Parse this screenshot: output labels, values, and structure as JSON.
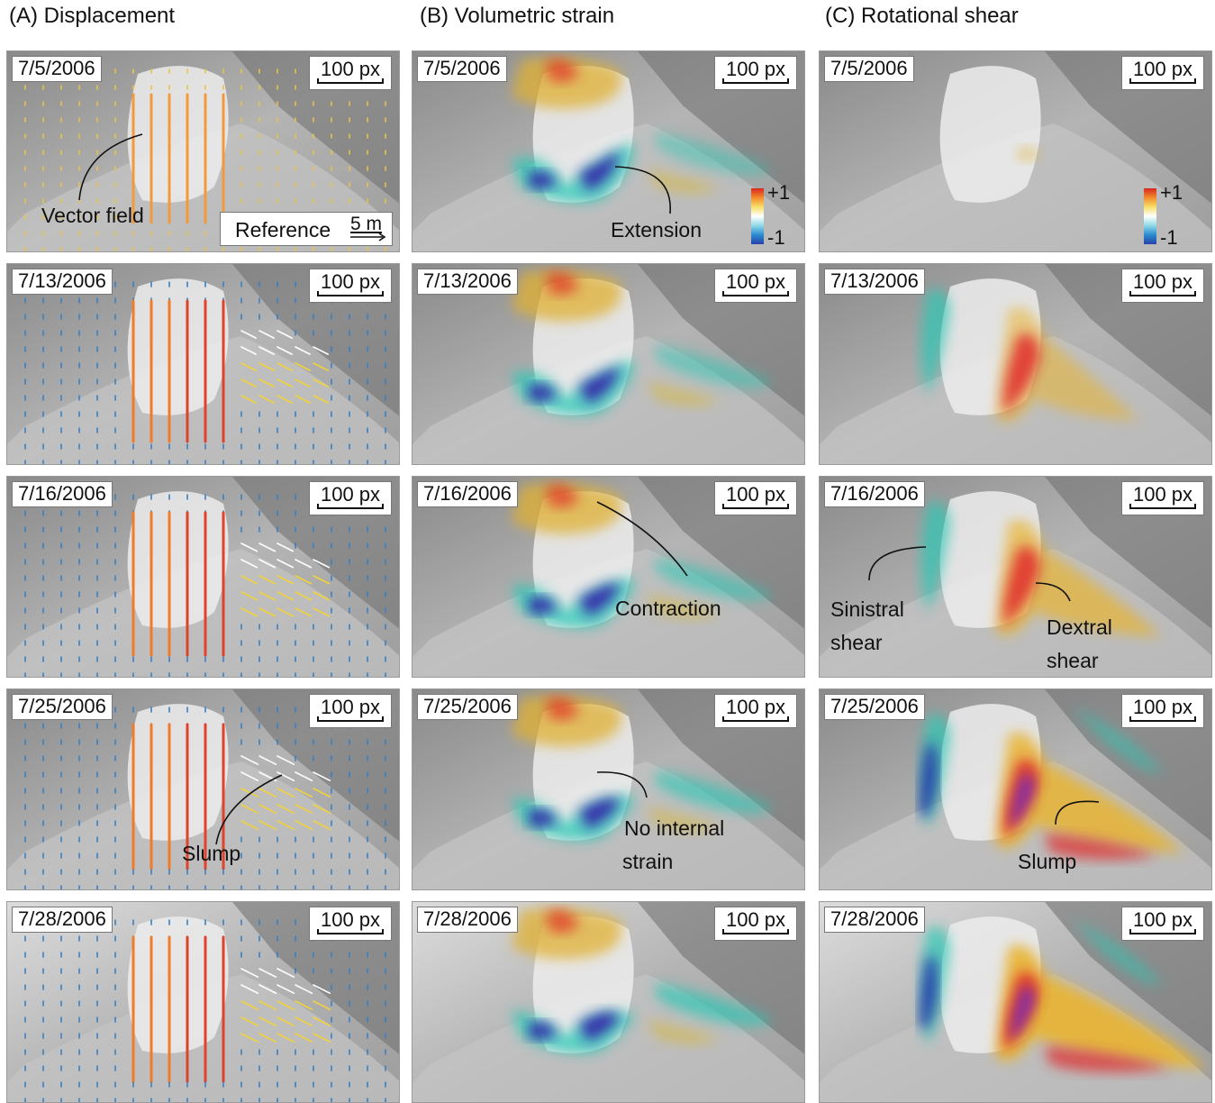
{
  "columns": [
    {
      "title": "(A) Displacement"
    },
    {
      "title": "(B) Volumetric strain"
    },
    {
      "title": "(C) Rotational shear"
    }
  ],
  "rows": [
    {
      "date": "7/5/2006"
    },
    {
      "date": "7/13/2006"
    },
    {
      "date": "7/16/2006"
    },
    {
      "date": "7/25/2006"
    },
    {
      "date": "7/28/2006"
    }
  ],
  "scale_label": "100 px",
  "reference": {
    "label": "Reference",
    "magnitude": "5 m"
  },
  "colorbar": {
    "max": "+1",
    "min": "-1"
  },
  "annotations": {
    "vector_field": "Vector field",
    "slump_a": "Slump",
    "extension": "Extension",
    "contraction": "Contraction",
    "no_internal_1": "No internal",
    "no_internal_2": "strain",
    "sinistral_1": "Sinistral",
    "sinistral_2": "shear",
    "dextral_1": "Dextral",
    "dextral_2": "shear",
    "slump_c": "Slump"
  }
}
